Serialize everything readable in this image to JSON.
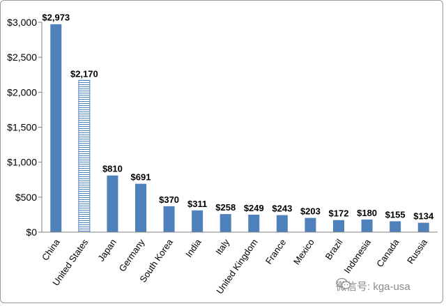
{
  "chart_data": {
    "type": "bar",
    "categories": [
      "China",
      "United States",
      "Japan",
      "Germany",
      "South Korea",
      "India",
      "Italy",
      "United Kingdom",
      "France",
      "Mexico",
      "Brazil",
      "Indonesia",
      "Canada",
      "Russia"
    ],
    "values": [
      2973,
      2170,
      810,
      691,
      370,
      311,
      258,
      249,
      243,
      203,
      172,
      180,
      155,
      134
    ],
    "value_labels": [
      "$2,973",
      "$2,170",
      "$810",
      "$691",
      "$370",
      "$311",
      "$258",
      "$249",
      "$243",
      "$203",
      "$172",
      "$180",
      "$155",
      "$134"
    ],
    "highlighted_category": "United States",
    "y_ticks": [
      0,
      500,
      1000,
      1500,
      2000,
      2500,
      3000
    ],
    "y_tick_labels": [
      "$0",
      "$500",
      "$1,000",
      "$1,500",
      "$2,000",
      "$2,500",
      "$3,000"
    ],
    "ylim": [
      0,
      3000
    ],
    "title": "",
    "xlabel": "",
    "ylabel": "",
    "grid": false,
    "legend": "none",
    "colors": {
      "bar": "#4f81bd",
      "highlight_stroke": "#4f81bd",
      "highlight_fill": "#ffffff",
      "axis": "#7f7f7f"
    }
  },
  "watermark": {
    "text": "微信号: kga-usa",
    "icon": "wechat-icon"
  }
}
